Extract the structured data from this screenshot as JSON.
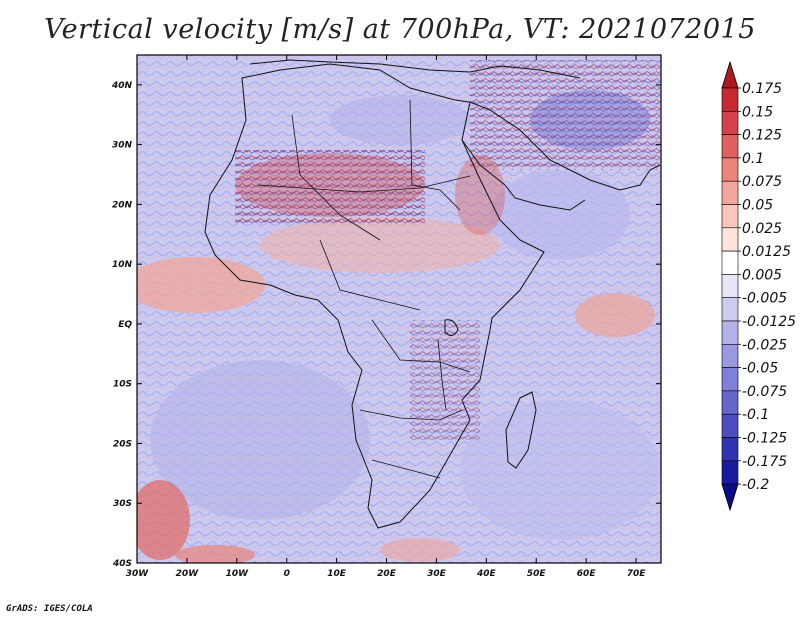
{
  "title": "Vertical velocity [m/s] at 700hPa, VT: 2021072015",
  "credit": "GrADS: IGES/COLA",
  "map": {
    "region": "Africa",
    "variable": "Vertical velocity",
    "units": "m/s",
    "level": "700hPa",
    "valid_time": "2021072015",
    "lon_range": [
      -30,
      75
    ],
    "lat_range": [
      -40,
      45
    ],
    "lat_labels": [
      "40N",
      "30N",
      "20N",
      "10N",
      "EQ",
      "10S",
      "20S",
      "30S",
      "40S"
    ],
    "lon_labels": [
      "30W",
      "20W",
      "10W",
      "0",
      "10E",
      "20E",
      "30E",
      "40E",
      "50E",
      "60E",
      "70E"
    ]
  },
  "colorbar": {
    "labels": [
      "0.175",
      "0.15",
      "0.125",
      "0.1",
      "0.075",
      "0.05",
      "0.025",
      "0.0125",
      "0.005",
      "-0.005",
      "-0.0125",
      "-0.025",
      "-0.05",
      "-0.075",
      "-0.1",
      "-0.125",
      "-0.175",
      "-0.2"
    ],
    "colors": [
      "#b01820",
      "#c42a30",
      "#d4434a",
      "#e0625f",
      "#ec857c",
      "#f3a79c",
      "#f8c6bd",
      "#fde3dc",
      "#ffffff",
      "#e6e6f6",
      "#ccccf0",
      "#b3b3e8",
      "#9999e0",
      "#8080d8",
      "#6666cc",
      "#4d4dbf",
      "#3333b2",
      "#1a1aa0",
      "#0a0a8a"
    ]
  }
}
